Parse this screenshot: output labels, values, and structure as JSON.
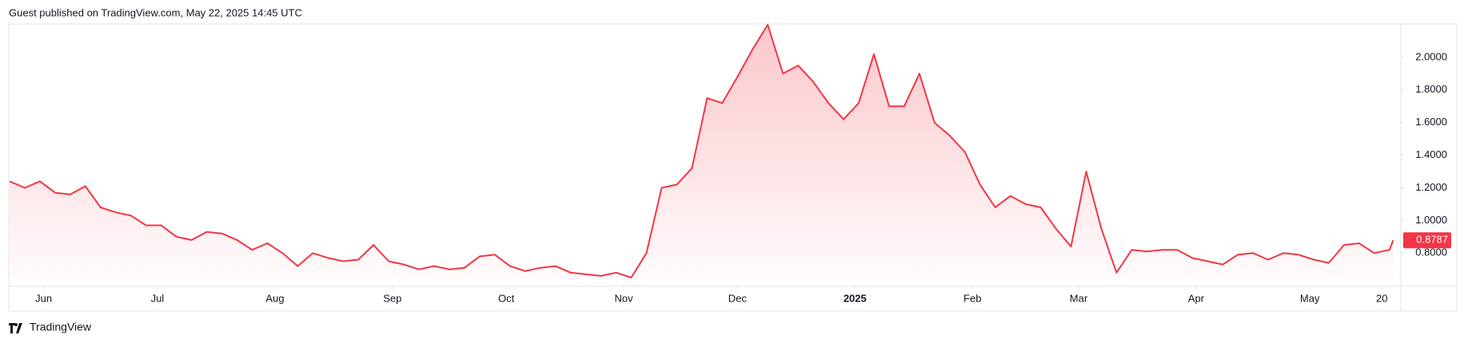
{
  "page_header": "Guest published on TradingView.com, May 22, 2025 14:45 UTC",
  "brand": "TradingView",
  "chart_data": {
    "type": "area",
    "x": [
      0,
      4,
      8,
      12,
      16,
      20,
      24,
      28,
      32,
      36,
      40,
      44,
      48,
      52,
      56,
      60,
      64,
      68,
      72,
      76,
      80,
      84,
      88,
      92,
      96,
      100,
      104,
      108,
      112,
      116,
      120,
      124,
      128,
      132,
      136,
      140,
      144,
      148,
      152,
      156,
      160,
      164,
      168,
      172,
      176,
      180,
      184,
      188,
      192,
      196,
      200,
      204,
      208,
      212,
      216,
      220,
      224,
      228,
      232,
      236,
      240,
      244,
      248,
      252,
      256,
      260,
      264,
      268,
      272,
      276,
      280,
      284,
      288,
      292,
      296,
      300,
      304,
      308,
      312,
      316,
      320,
      324,
      328,
      332,
      336,
      340,
      344,
      348,
      352,
      356,
      360,
      364,
      365
    ],
    "series": [
      {
        "color": "#f23645",
        "values": [
          1.24,
          1.2,
          1.24,
          1.17,
          1.16,
          1.21,
          1.08,
          1.05,
          1.03,
          0.97,
          0.97,
          0.9,
          0.88,
          0.93,
          0.92,
          0.88,
          0.82,
          0.86,
          0.8,
          0.72,
          0.8,
          0.77,
          0.75,
          0.76,
          0.85,
          0.75,
          0.73,
          0.7,
          0.72,
          0.7,
          0.71,
          0.78,
          0.79,
          0.72,
          0.69,
          0.71,
          0.72,
          0.68,
          0.67,
          0.66,
          0.68,
          0.65,
          0.8,
          1.2,
          1.22,
          1.32,
          1.75,
          1.72,
          1.88,
          2.05,
          2.2,
          1.9,
          1.95,
          1.85,
          1.72,
          1.62,
          1.72,
          2.02,
          1.7,
          1.7,
          1.9,
          1.6,
          1.52,
          1.42,
          1.22,
          1.08,
          1.15,
          1.1,
          1.08,
          0.95,
          0.84,
          1.3,
          0.95,
          0.68,
          0.82,
          0.81,
          0.82,
          0.82,
          0.77,
          0.75,
          0.73,
          0.79,
          0.8,
          0.76,
          0.8,
          0.79,
          0.76,
          0.74,
          0.85,
          0.86,
          0.8,
          0.82,
          0.8787
        ]
      }
    ],
    "xlim": [
      0,
      367
    ],
    "xticks": [
      {
        "value": 9,
        "label": "Jun"
      },
      {
        "value": 39,
        "label": "Jul"
      },
      {
        "value": 70,
        "label": "Aug"
      },
      {
        "value": 101,
        "label": "Sep"
      },
      {
        "value": 131,
        "label": "Oct"
      },
      {
        "value": 162,
        "label": "Nov"
      },
      {
        "value": 192,
        "label": "Dec"
      },
      {
        "value": 223,
        "label": "2025"
      },
      {
        "value": 254,
        "label": "Feb"
      },
      {
        "value": 282,
        "label": "Mar"
      },
      {
        "value": 313,
        "label": "Apr"
      },
      {
        "value": 343,
        "label": "May"
      },
      {
        "value": 362,
        "label": "20"
      }
    ],
    "ylim": [
      0.64,
      2.2
    ],
    "yticks": [
      {
        "value": 0.8,
        "label": "0.8000"
      },
      {
        "value": 1.0,
        "label": "1.0000"
      },
      {
        "value": 1.2,
        "label": "1.2000"
      },
      {
        "value": 1.4,
        "label": "1.4000"
      },
      {
        "value": 1.6,
        "label": "1.6000"
      },
      {
        "value": 1.8,
        "label": "1.8000"
      },
      {
        "value": 2.0,
        "label": "2.0000"
      }
    ],
    "grid": false
  }
}
